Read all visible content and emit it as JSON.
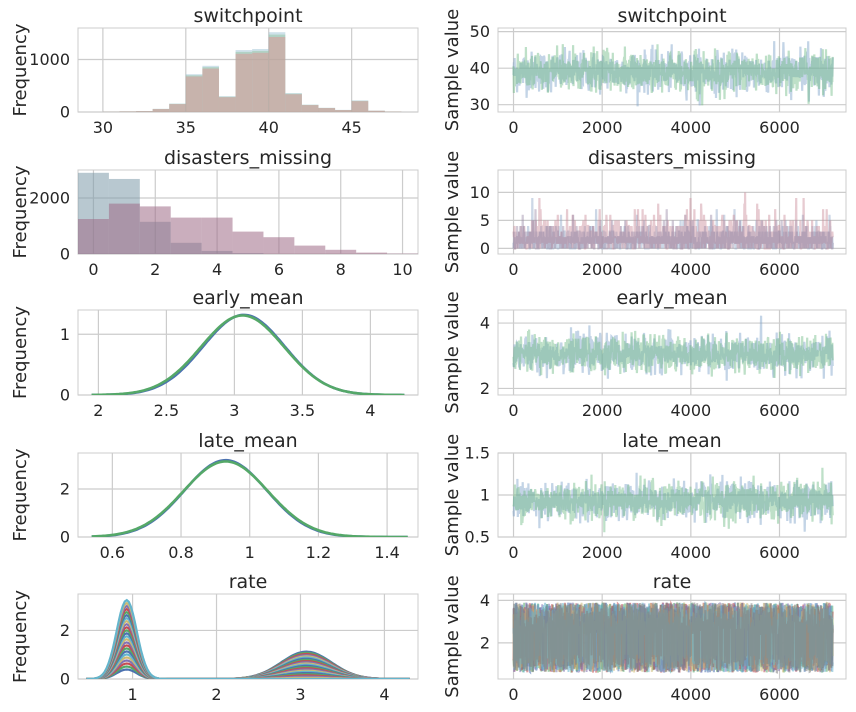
{
  "chart_data": [
    {
      "type": "histogram",
      "title": "switchpoint",
      "ylabel": "Frequency",
      "xlim": [
        28.5,
        49
      ],
      "ylim": [
        0,
        1600
      ],
      "xticks": [
        30,
        35,
        40,
        45
      ],
      "yticks": [
        0,
        1000
      ],
      "bins": [
        {
          "x0": 30,
          "x1": 31,
          "v": 5
        },
        {
          "x0": 31,
          "x1": 32,
          "v": 12
        },
        {
          "x0": 32,
          "x1": 33,
          "v": 18
        },
        {
          "x0": 33,
          "x1": 34,
          "v": 60
        },
        {
          "x0": 34,
          "x1": 35,
          "v": 160
        },
        {
          "x0": 35,
          "x1": 36,
          "v": 720
        },
        {
          "x0": 36,
          "x1": 37,
          "v": 880
        },
        {
          "x0": 37,
          "x1": 38,
          "v": 300
        },
        {
          "x0": 38,
          "x1": 39,
          "v": 1180
        },
        {
          "x0": 39,
          "x1": 40,
          "v": 1200
        },
        {
          "x0": 40,
          "x1": 41,
          "v": 1520
        },
        {
          "x0": 41,
          "x1": 42,
          "v": 360
        },
        {
          "x0": 42,
          "x1": 43,
          "v": 140
        },
        {
          "x0": 43,
          "x1": 44,
          "v": 80
        },
        {
          "x0": 44,
          "x1": 45,
          "v": 40
        },
        {
          "x0": 45,
          "x1": 46,
          "v": 220
        },
        {
          "x0": 46,
          "x1": 47,
          "v": 25
        },
        {
          "x0": 47,
          "x1": 48,
          "v": 8
        }
      ],
      "colors": [
        "#94bcd0",
        "#8cc09a",
        "#e38e8e"
      ]
    },
    {
      "type": "line",
      "title": "switchpoint",
      "ylabel": "Sample value",
      "xlim": [
        -350,
        7500
      ],
      "ylim": [
        28,
        51
      ],
      "xticks": [
        0,
        2000,
        4000,
        6000
      ],
      "yticks": [
        30,
        40,
        50
      ],
      "n": 7200,
      "center": 39,
      "spread": 3.2,
      "low": 29.5,
      "high": 47.5,
      "colors": [
        "#7aa0c8",
        "#6fba86"
      ]
    },
    {
      "type": "histogram",
      "title": "disasters_missing",
      "ylabel": "Frequency",
      "xlim": [
        -0.5,
        10.5
      ],
      "ylim": [
        0,
        3000
      ],
      "xticks": [
        0,
        2,
        4,
        6,
        8,
        10
      ],
      "yticks": [
        0,
        2000
      ],
      "series": [
        {
          "color": "#7e9aaa",
          "bins": [
            {
              "x0": -0.5,
              "x1": 0.5,
              "v": 2900
            },
            {
              "x0": 0.5,
              "x1": 1.5,
              "v": 2680
            },
            {
              "x0": 1.5,
              "x1": 2.5,
              "v": 1150
            },
            {
              "x0": 2.5,
              "x1": 3.5,
              "v": 400
            },
            {
              "x0": 3.5,
              "x1": 4.5,
              "v": 110
            },
            {
              "x0": 4.5,
              "x1": 5.5,
              "v": 30
            }
          ]
        },
        {
          "color": "#9e6b86",
          "bins": [
            {
              "x0": -0.5,
              "x1": 0.5,
              "v": 1250
            },
            {
              "x0": 0.5,
              "x1": 1.5,
              "v": 1800
            },
            {
              "x0": 1.5,
              "x1": 2.5,
              "v": 1700
            },
            {
              "x0": 2.5,
              "x1": 3.5,
              "v": 1300
            },
            {
              "x0": 3.5,
              "x1": 4.5,
              "v": 1300
            },
            {
              "x0": 4.5,
              "x1": 5.5,
              "v": 800
            },
            {
              "x0": 5.5,
              "x1": 6.5,
              "v": 600
            },
            {
              "x0": 6.5,
              "x1": 7.5,
              "v": 300
            },
            {
              "x0": 7.5,
              "x1": 8.5,
              "v": 150
            },
            {
              "x0": 8.5,
              "x1": 9.5,
              "v": 50
            },
            {
              "x0": 9.5,
              "x1": 10.5,
              "v": 15
            }
          ]
        }
      ]
    },
    {
      "type": "line",
      "title": "disasters_missing",
      "ylabel": "Sample value",
      "xlim": [
        -350,
        7500
      ],
      "ylim": [
        -1,
        14
      ],
      "xticks": [
        0,
        2000,
        4000,
        6000
      ],
      "yticks": [
        0,
        5,
        10
      ],
      "n": 7200,
      "discrete": true,
      "colors": [
        "#8fa6c8",
        "#c98b9a",
        "#9a8aa6"
      ]
    },
    {
      "type": "density",
      "title": "early_mean",
      "ylabel": "Frequency",
      "xlim": [
        1.85,
        4.35
      ],
      "ylim": [
        0,
        1.4
      ],
      "xticks": [
        2.0,
        2.5,
        3.0,
        3.5,
        4.0
      ],
      "yticks": [
        0,
        1
      ],
      "xrange": [
        1.95,
        4.25
      ],
      "curves": [
        {
          "mu": 3.07,
          "sigma": 0.3,
          "peak": 1.32,
          "color": "#4c72b0"
        },
        {
          "mu": 3.06,
          "sigma": 0.305,
          "peak": 1.31,
          "color": "#55a868"
        }
      ]
    },
    {
      "type": "line",
      "title": "early_mean",
      "ylabel": "Sample value",
      "xlim": [
        -350,
        7500
      ],
      "ylim": [
        1.8,
        4.4
      ],
      "xticks": [
        0,
        2000,
        4000,
        6000
      ],
      "yticks": [
        2,
        4
      ],
      "n": 7200,
      "center": 3.06,
      "spread": 0.32,
      "low": 2.0,
      "high": 4.25,
      "colors": [
        "#7aa0c8",
        "#6fba86"
      ]
    },
    {
      "type": "density",
      "title": "late_mean",
      "ylabel": "Frequency",
      "xlim": [
        0.5,
        1.49
      ],
      "ylim": [
        0,
        3.5
      ],
      "xticks": [
        0.6,
        0.8,
        1.0,
        1.2,
        1.4
      ],
      "yticks": [
        0,
        2
      ],
      "xrange": [
        0.54,
        1.46
      ],
      "curves": [
        {
          "mu": 0.93,
          "sigma": 0.12,
          "peak": 3.2,
          "color": "#4c72b0"
        },
        {
          "mu": 0.93,
          "sigma": 0.123,
          "peak": 3.15,
          "color": "#55a868"
        }
      ]
    },
    {
      "type": "line",
      "title": "late_mean",
      "ylabel": "Sample value",
      "xlim": [
        -350,
        7500
      ],
      "ylim": [
        0.5,
        1.5
      ],
      "xticks": [
        0,
        2000,
        4000,
        6000
      ],
      "yticks": [
        0.5,
        1.0,
        1.5
      ],
      "n": 7200,
      "center": 0.93,
      "spread": 0.13,
      "low": 0.55,
      "high": 1.42,
      "colors": [
        "#7aa0c8",
        "#6fba86"
      ]
    },
    {
      "type": "density",
      "title": "rate",
      "ylabel": "Frequency",
      "xlim": [
        0.35,
        4.4
      ],
      "ylim": [
        0,
        3.5
      ],
      "xticks": [
        1,
        2,
        3,
        4
      ],
      "yticks": [
        0,
        2
      ],
      "xrange": [
        0.45,
        4.3
      ],
      "mixture": {
        "mu1": 0.93,
        "s1": 0.12,
        "mu2": 3.07,
        "s2": 0.3,
        "ncurves": 24,
        "maxpeak": 3.25
      },
      "palette": [
        "#4c72b0",
        "#55a868",
        "#c44e52",
        "#8172b2",
        "#ccb974",
        "#64b5cd"
      ]
    },
    {
      "type": "line",
      "title": "rate",
      "ylabel": "Sample value",
      "xlim": [
        -350,
        7500
      ],
      "ylim": [
        0.3,
        4.3
      ],
      "xticks": [
        0,
        2000,
        4000,
        6000
      ],
      "yticks": [
        2,
        4
      ],
      "n": 7200,
      "bands": [
        [
          0.6,
          1.45
        ],
        [
          2.4,
          3.9
        ]
      ],
      "colors": [
        "#4c72b0",
        "#55a868",
        "#c44e52",
        "#8172b2",
        "#ccb974",
        "#64b5cd",
        "#7f7f7f"
      ]
    }
  ]
}
